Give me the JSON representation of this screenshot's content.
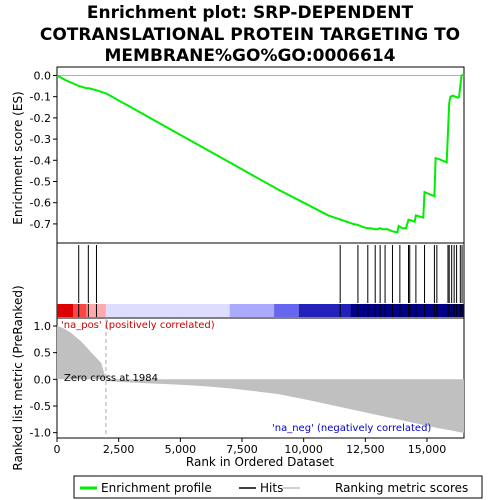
{
  "chart_data": {
    "type": "line",
    "title_lines": [
      "Enrichment plot: SRP-DEPENDENT",
      "COTRANSLATIONAL PROTEIN TARGETING TO",
      "MEMBRANE%GO%GO:0006614"
    ],
    "top_panel": {
      "ylabel": "Enrichment score (ES)",
      "ylim": [
        -0.79,
        0.04
      ],
      "yticks": [
        "0.0",
        "-0.1",
        "-0.2",
        "-0.3",
        "-0.4",
        "-0.5",
        "-0.6",
        "-0.7"
      ],
      "ytick_values": [
        0.0,
        -0.1,
        -0.2,
        -0.3,
        -0.4,
        -0.5,
        -0.6,
        -0.7
      ],
      "series": [
        {
          "name": "Enrichment profile",
          "color": "#00ee00",
          "x": [
            0,
            400,
            800,
            900,
            1200,
            1300,
            1600,
            2000,
            3000,
            4000,
            5000,
            6000,
            7000,
            8000,
            9000,
            10000,
            11000,
            11500,
            12000,
            12200,
            12400,
            12600,
            12700,
            12900,
            13000,
            13100,
            13200,
            13400,
            13600,
            13800,
            13850,
            14000,
            14150,
            14250,
            14400,
            14500,
            14550,
            14700,
            14850,
            14900,
            15100,
            15300,
            15350,
            15500,
            15800,
            15900,
            15950,
            16050,
            16150,
            16250,
            16300,
            16350,
            16400,
            16500
          ],
          "y": [
            0.0,
            -0.025,
            -0.045,
            -0.05,
            -0.06,
            -0.06,
            -0.07,
            -0.085,
            -0.15,
            -0.215,
            -0.28,
            -0.345,
            -0.41,
            -0.475,
            -0.54,
            -0.6,
            -0.66,
            -0.68,
            -0.7,
            -0.705,
            -0.715,
            -0.72,
            -0.72,
            -0.725,
            -0.725,
            -0.72,
            -0.725,
            -0.725,
            -0.735,
            -0.74,
            -0.71,
            -0.72,
            -0.72,
            -0.68,
            -0.685,
            -0.69,
            -0.66,
            -0.665,
            -0.67,
            -0.55,
            -0.56,
            -0.57,
            -0.39,
            -0.395,
            -0.41,
            -0.13,
            -0.1,
            -0.095,
            -0.1,
            -0.105,
            -0.1,
            -0.05,
            0.0,
            0.005
          ]
        }
      ]
    },
    "hits_panel": {
      "hit_positions": [
        880,
        1270,
        1600,
        11480,
        12200,
        12600,
        12900,
        13100,
        13300,
        13600,
        13900,
        14250,
        14300,
        14550,
        14900,
        15300,
        15400,
        15850,
        15900,
        16000,
        16100,
        16200,
        16350,
        16420
      ],
      "heat_colors": [
        "#dd0000",
        "#ff4444",
        "#ffaaaa",
        "#ddddff",
        "#aaaaff",
        "#6666ee",
        "#2222bb",
        "#000088"
      ],
      "heat_breaks_x": [
        0,
        650,
        1200,
        1984,
        7000,
        8800,
        9800,
        11900,
        16500
      ]
    },
    "bottom_panel": {
      "ylabel": "Ranked list metric (PreRanked)",
      "ylim": [
        -1.1,
        1.15
      ],
      "yticks": [
        "1.0",
        "0.5",
        "0.0",
        "-0.5",
        "-1.0"
      ],
      "ytick_values": [
        1.0,
        0.5,
        0.0,
        -0.5,
        -1.0
      ],
      "xlabel": "Rank in Ordered Dataset",
      "xlim": [
        0,
        16500
      ],
      "xticks": [
        "0",
        "2,500",
        "5,000",
        "7,500",
        "10,000",
        "12,500",
        "15,000"
      ],
      "xtick_values": [
        0,
        2500,
        5000,
        7500,
        10000,
        12500,
        15000
      ],
      "metric_x": [
        0,
        200,
        400,
        600,
        800,
        1000,
        1200,
        1400,
        1600,
        1800,
        1984,
        2000,
        2500,
        3000,
        4000,
        5000,
        6000,
        7000,
        8000,
        9000,
        10000,
        11000,
        12000,
        13000,
        14000,
        15000,
        15500,
        16000,
        16300,
        16500
      ],
      "metric_y": [
        1.0,
        0.97,
        0.92,
        0.86,
        0.78,
        0.7,
        0.6,
        0.5,
        0.4,
        0.3,
        0.0,
        -0.03,
        -0.05,
        -0.06,
        -0.08,
        -0.1,
        -0.13,
        -0.17,
        -0.22,
        -0.28,
        -0.37,
        -0.47,
        -0.57,
        -0.67,
        -0.77,
        -0.87,
        -0.92,
        -0.96,
        -0.99,
        -1.0
      ],
      "zero_cross_x": 1984,
      "annotations": {
        "pos": "'na_pos' (positively correlated)",
        "neg": "'na_neg' (negatively correlated)",
        "zero_cross": "Zero cross at 1984"
      },
      "pos_color": "#cc0000",
      "neg_color": "#0000cc"
    },
    "legend": {
      "items": [
        {
          "label": "Enrichment profile",
          "color": "#00ee00"
        },
        {
          "label": "Hits",
          "color": "#000000"
        },
        {
          "label": "Ranking metric scores",
          "color": "#c0c0c0"
        }
      ]
    }
  }
}
